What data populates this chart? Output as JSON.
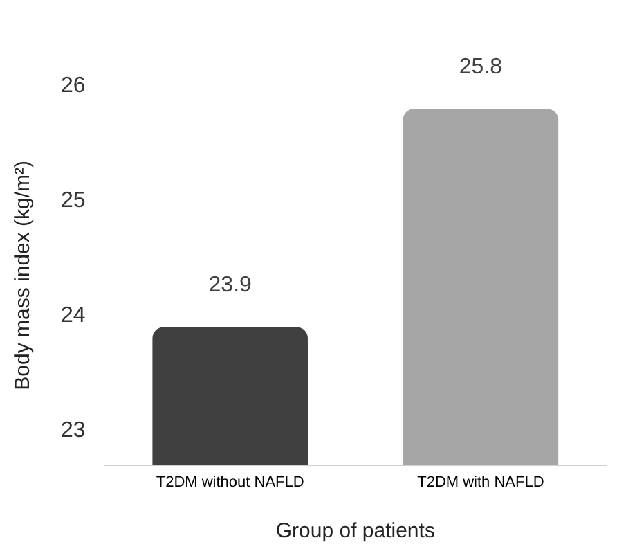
{
  "chart_data": {
    "type": "bar",
    "ylabel": "Body mass index (kg/m²)",
    "xlabel": "Group of patients",
    "categories": [
      "T2DM without NAFLD",
      "T2DM with NAFLD"
    ],
    "values": [
      23.9,
      25.8
    ],
    "colors": [
      "#404040",
      "#a6a6a6"
    ],
    "ylim": [
      22.7,
      26
    ],
    "yticks": [
      23,
      24,
      25,
      26
    ],
    "grid": false,
    "legend": false,
    "data_labels": true
  }
}
